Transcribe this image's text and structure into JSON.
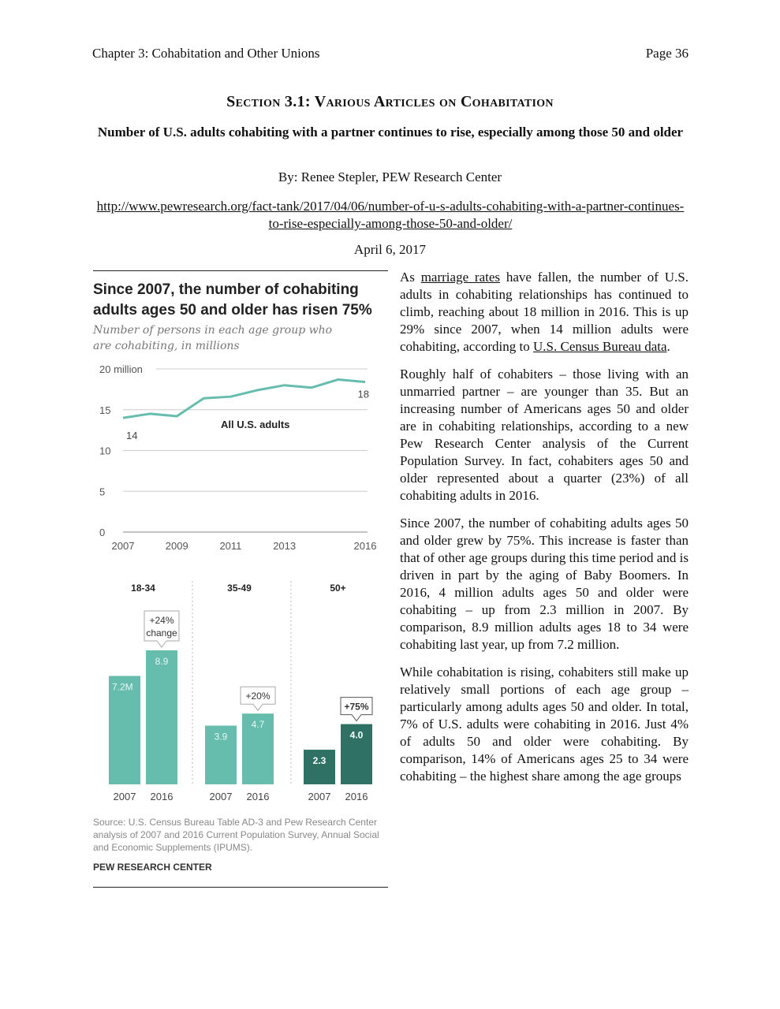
{
  "header": {
    "chapter": "Chapter 3: Cohabitation and Other Unions",
    "page": "Page 36"
  },
  "section_title": "Section 3.1: Various Articles on Cohabitation",
  "article": {
    "title": "Number of U.S. adults cohabiting with a partner continues to rise, especially among those 50 and older",
    "byline": "By: Renee Stepler, PEW Research Center",
    "url": "http://www.pewresearch.org/fact-tank/2017/04/06/number-of-u-s-adults-cohabiting-with-a-partner-continues-to-rise-especially-among-those-50-and-older/",
    "date": "April 6, 2017"
  },
  "figure": {
    "title": "Since 2007, the number of cohabiting adults ages 50 and older has risen 75%",
    "subtitle": "Number of persons in each age group who are cohabiting, in millions",
    "source": "Source: U.S. Census Bureau Table AD-3 and Pew Research Center analysis of 2007 and 2016 Current Population Survey, Annual Social and Economic Supplements (IPUMS).",
    "credit": "PEW RESEARCH CENTER",
    "colors": {
      "light_teal": "#66bdae",
      "dark_teal": "#2f7265",
      "line": "#66bdae",
      "grid": "#cccccc"
    }
  },
  "chart_data": [
    {
      "type": "line",
      "ylim": [
        0,
        20
      ],
      "y_ticks": [
        0,
        5,
        10,
        15,
        20
      ],
      "y_tick_labels": [
        "0",
        "5",
        "10",
        "15",
        "20 million"
      ],
      "x_ticks": [
        "2007",
        "2009",
        "2011",
        "2013",
        "2016"
      ],
      "grid": true,
      "series": [
        {
          "name": "All U.S. adults",
          "x": [
            2007,
            2008,
            2009,
            2010,
            2011,
            2012,
            2013,
            2014,
            2015,
            2016
          ],
          "values": [
            14.0,
            14.5,
            14.2,
            16.4,
            16.6,
            17.4,
            18.0,
            17.7,
            18.7,
            18.4
          ]
        }
      ],
      "data_labels": {
        "first": "14",
        "last": "18"
      }
    },
    {
      "type": "bar",
      "groups": [
        {
          "name": "18-34",
          "values": [
            7.2,
            8.9
          ],
          "labels": [
            "7.2M",
            "8.9"
          ],
          "change": "+24%",
          "change_suffix": "change"
        },
        {
          "name": "35-49",
          "values": [
            3.9,
            4.7
          ],
          "labels": [
            "3.9",
            "4.7"
          ],
          "change": "+20%",
          "change_suffix": ""
        },
        {
          "name": "50+",
          "values": [
            2.3,
            4.0
          ],
          "labels": [
            "2.3",
            "4.0"
          ],
          "change": "+75%",
          "change_suffix": ""
        }
      ],
      "categories": [
        "2007",
        "2016"
      ]
    }
  ],
  "body": {
    "p1_a": "As ",
    "p1_link1": "marriage rates",
    "p1_b": " have fallen, the number of U.S. adults in cohabiting relationships has continued to climb, reaching about 18 million in 2016. This is up 29% since 2007, when 14 million adults were cohabiting, according to ",
    "p1_link2": "U.S. Census Bureau data",
    "p1_c": ".",
    "p2": "Roughly half of cohabiters – those living with an unmarried partner – are younger than 35. But an increasing number of Americans ages 50 and older are in cohabiting relationships, according to a new Pew Research Center analysis of the Current Population Survey. In fact, cohabiters ages 50 and older represented about a quarter (23%) of all cohabiting adults in 2016.",
    "p3": "Since 2007, the number of cohabiting adults ages 50 and older grew by 75%. This increase is faster than that of other age groups during this time period and is driven in part by the aging of Baby Boomers. In 2016, 4 million adults ages 50 and older were cohabiting – up from 2.3 million in 2007. By comparison, 8.9 million adults ages 18 to 34 were cohabiting last year, up from 7.2 million.",
    "p4": "While cohabitation is rising, cohabiters still make up relatively small portions of each age group – particularly among adults ages 50 and older. In total, 7% of U.S. adults were cohabiting in 2016. Just 4% of adults 50 and older were cohabiting. By comparison, 14% of Americans ages 25 to 34 were cohabiting – the highest share among the age groups"
  }
}
